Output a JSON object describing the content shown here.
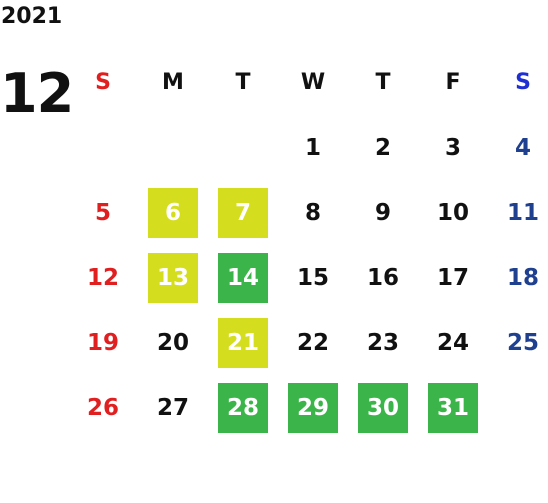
{
  "calendar": {
    "year": "2021",
    "month": "12",
    "weekdays": [
      {
        "label": "S",
        "kind": "sun"
      },
      {
        "label": "M",
        "kind": ""
      },
      {
        "label": "T",
        "kind": ""
      },
      {
        "label": "W",
        "kind": ""
      },
      {
        "label": "T",
        "kind": ""
      },
      {
        "label": "F",
        "kind": ""
      },
      {
        "label": "S",
        "kind": "sat-head"
      }
    ],
    "weeks": [
      [
        null,
        null,
        null,
        {
          "d": "1"
        },
        {
          "d": "2"
        },
        {
          "d": "3"
        },
        {
          "d": "4"
        }
      ],
      [
        {
          "d": "5"
        },
        {
          "d": "6",
          "hl": "yellow"
        },
        {
          "d": "7",
          "hl": "yellow"
        },
        {
          "d": "8"
        },
        {
          "d": "9"
        },
        {
          "d": "10"
        },
        {
          "d": "11"
        }
      ],
      [
        {
          "d": "12"
        },
        {
          "d": "13",
          "hl": "yellow"
        },
        {
          "d": "14",
          "hl": "green"
        },
        {
          "d": "15"
        },
        {
          "d": "16"
        },
        {
          "d": "17"
        },
        {
          "d": "18"
        }
      ],
      [
        {
          "d": "19"
        },
        {
          "d": "20"
        },
        {
          "d": "21",
          "hl": "yellow"
        },
        {
          "d": "22"
        },
        {
          "d": "23"
        },
        {
          "d": "24"
        },
        {
          "d": "25"
        }
      ],
      [
        {
          "d": "26"
        },
        {
          "d": "27"
        },
        {
          "d": "28",
          "hl": "green"
        },
        {
          "d": "29",
          "hl": "green"
        },
        {
          "d": "30",
          "hl": "green"
        },
        {
          "d": "31",
          "hl": "green"
        },
        null
      ]
    ],
    "colors": {
      "sunday": "#e02020",
      "saturday": "#1f3f8f",
      "highlight_yellow": "#d5dd1f",
      "highlight_green": "#3bb549"
    }
  }
}
